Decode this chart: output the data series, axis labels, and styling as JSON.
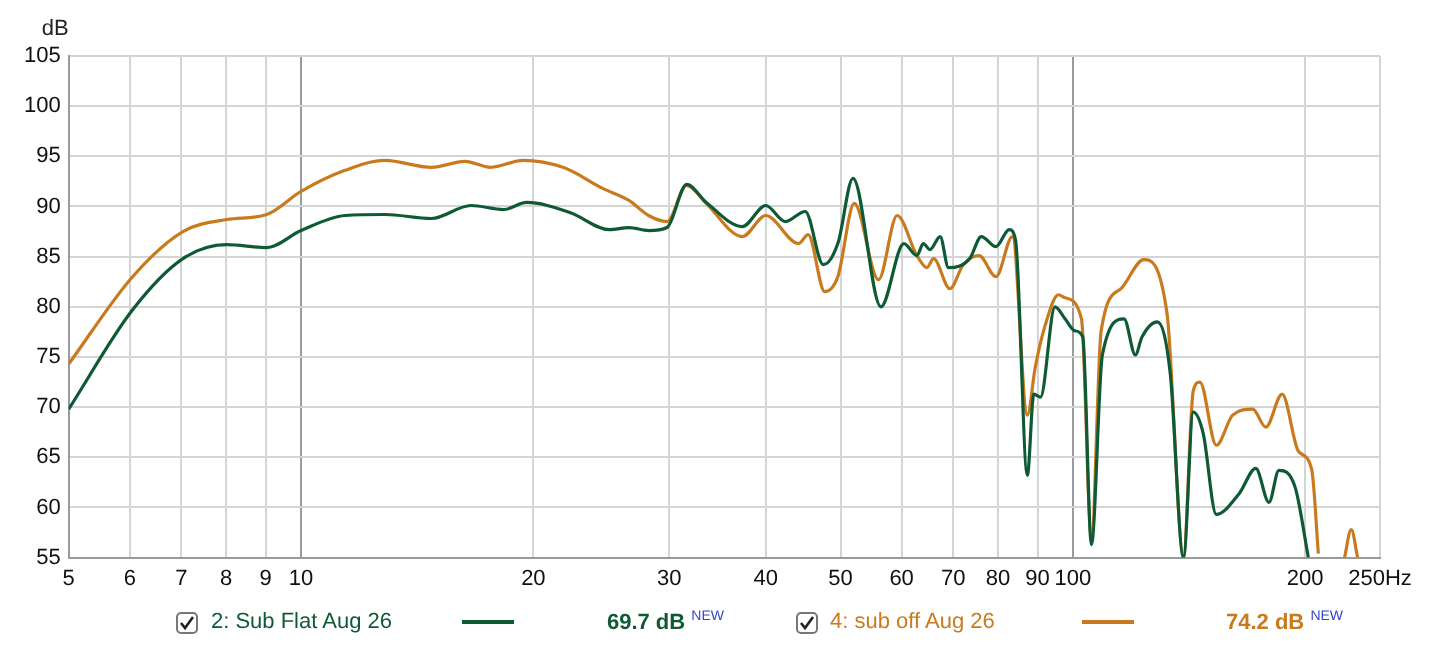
{
  "chart_data": {
    "type": "line",
    "ylabel": "dB",
    "log": "x",
    "grid": true,
    "legend": "bottom",
    "xlim": [
      5,
      250
    ],
    "xticks": [
      5,
      6,
      7,
      8,
      9,
      10,
      20,
      30,
      40,
      50,
      60,
      70,
      80,
      90,
      100,
      200,
      {
        "value": 250,
        "label": "250Hz"
      }
    ],
    "ylim": [
      55,
      105
    ],
    "yticks": [
      55,
      60,
      65,
      70,
      75,
      80,
      85,
      90,
      95,
      100,
      105
    ],
    "annotations": [
      "69.7 dB $^{NEW}$",
      "74.2 dB $^{NEW}$"
    ],
    "series": [
      {
        "name": "2: Sub Flat Aug 26",
        "color": "#0e5a34",
        "x": [
          5,
          6.05,
          7.03,
          8.01,
          9.03,
          10,
          11.4,
          12.85,
          14.75,
          16.6,
          18.3,
          19.6,
          22.3,
          25.1,
          26.6,
          28.2,
          29.8,
          31.6,
          33.5,
          37.3,
          40,
          42.4,
          45,
          47.5,
          49.6,
          51.9,
          56.4,
          60.4,
          62.8,
          64,
          65.3,
          67.3,
          69,
          73.5,
          76.1,
          79.5,
          82.7,
          84.3,
          87.3,
          89,
          90.8,
          94.8,
          97.7,
          100.6,
          103,
          105.7,
          109.2,
          116.5,
          120.5,
          122.9,
          128.6,
          133.7,
          139.1,
          143.2,
          147.5,
          153.4,
          164.3,
          172.6,
          179.5,
          184.9,
          194.1,
          201.9
        ],
        "values": [
          69.8,
          79.7,
          84.8,
          86.2,
          85.9,
          87.6,
          89.1,
          89.2,
          88.8,
          90.1,
          89.7,
          90.4,
          89.4,
          87.7,
          87.9,
          87.6,
          87.9,
          92.2,
          90.4,
          88.0,
          90.1,
          88.5,
          89.5,
          84.2,
          86.3,
          92.8,
          80.0,
          86.3,
          85.1,
          86.3,
          85.7,
          87.0,
          83.9,
          84.8,
          87.0,
          86.0,
          87.7,
          86.6,
          63.2,
          71.3,
          71.0,
          80.0,
          78.8,
          77.6,
          77.0,
          56.3,
          75.2,
          78.8,
          75.2,
          77.0,
          78.5,
          73.4,
          55,
          69.5,
          67.4,
          59.3,
          61.4,
          63.9,
          60.5,
          63.7,
          62.0,
          55
        ]
      },
      {
        "name": "4: sub off Aug 26",
        "color": "#c97a1e",
        "x": [
          5,
          6.05,
          7.03,
          8.01,
          9.03,
          10,
          11.4,
          12.85,
          14.75,
          16.3,
          17.6,
          19.4,
          21.85,
          24.6,
          26.6,
          28.2,
          29.8,
          31.6,
          33.5,
          37.3,
          40,
          44.1,
          45.4,
          47.7,
          49.6,
          52.1,
          56,
          59.2,
          62.8,
          64.7,
          66,
          69.3,
          72.1,
          75.6,
          79.5,
          83.5,
          87.3,
          89.4,
          92.1,
          95.8,
          97.7,
          102.6,
          105.7,
          108.8,
          115.4,
          123.6,
          132.4,
          139.1,
          143.2,
          146.1,
          153.4,
          161.1,
          171,
          177.8,
          186.7,
          196,
          203.9,
          208,
          215,
          224.9,
          229.4,
          233.9
        ],
        "values": [
          74.3,
          83.0,
          87.5,
          88.7,
          89.2,
          91.5,
          93.6,
          94.6,
          93.9,
          94.5,
          93.9,
          94.6,
          93.9,
          91.8,
          90.6,
          89.1,
          88.5,
          92.1,
          90.3,
          87.0,
          89.1,
          86.3,
          87.2,
          81.5,
          83.0,
          90.3,
          82.7,
          89.1,
          85.1,
          83.9,
          84.8,
          81.8,
          84.2,
          85.1,
          83.0,
          87.0,
          69.2,
          74.0,
          78.2,
          81.2,
          80.9,
          78.8,
          56.9,
          77.6,
          81.8,
          84.7,
          79.4,
          55.2,
          71.6,
          72.5,
          66.2,
          69.2,
          69.8,
          68.0,
          71.3,
          65.6,
          63.8,
          55.4,
          null,
          55,
          57.8,
          55
        ]
      }
    ]
  }
}
